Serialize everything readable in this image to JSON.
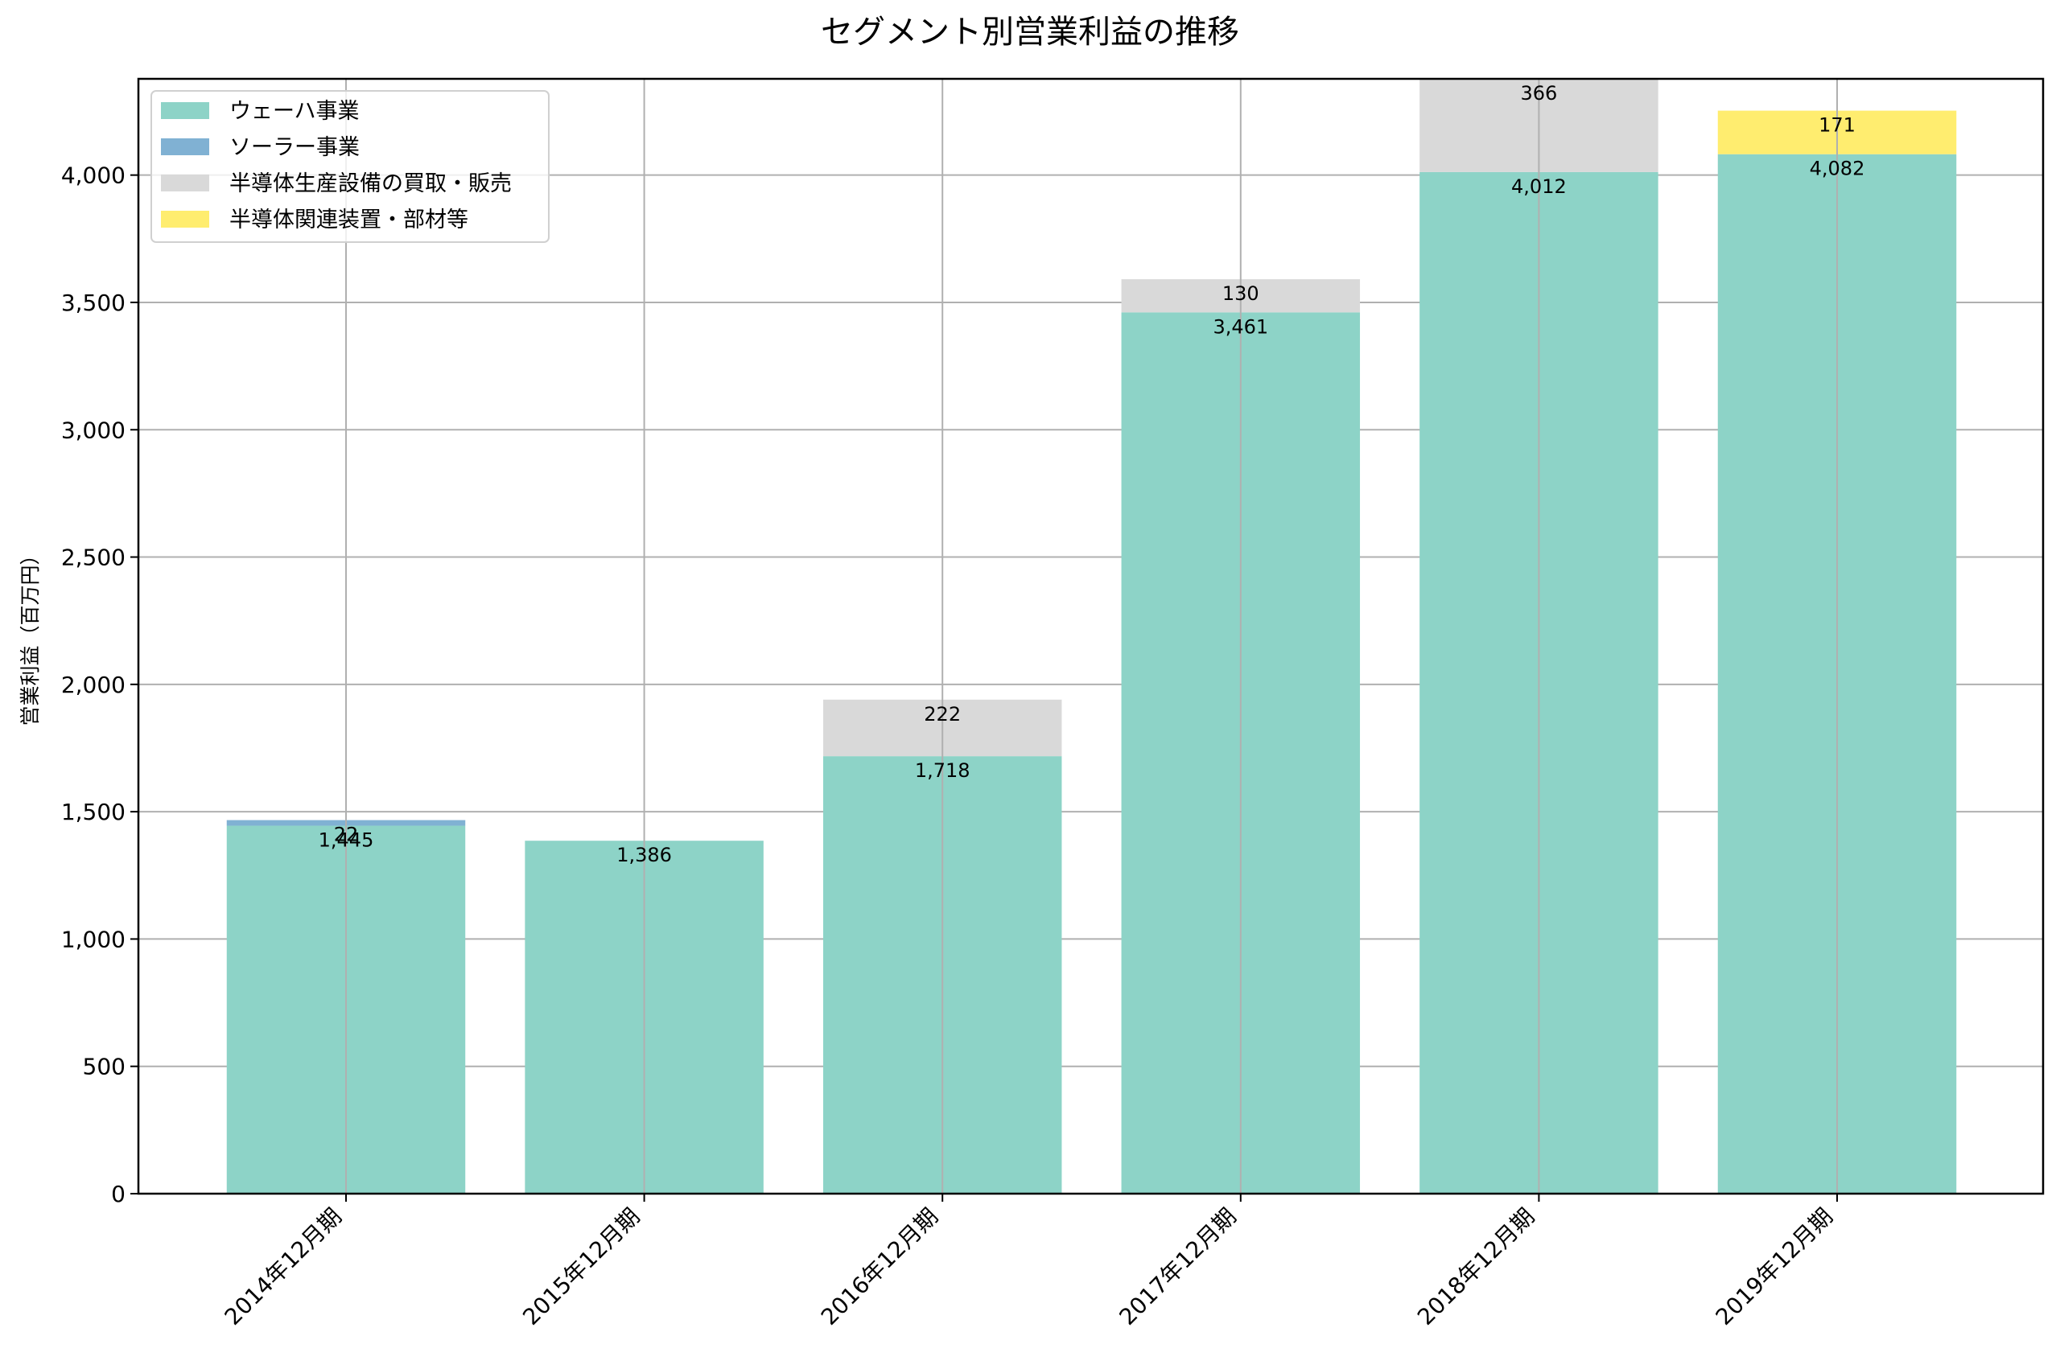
{
  "chart_data": {
    "type": "bar",
    "stacked": true,
    "title": "セグメント別営業利益の推移",
    "xlabel": "",
    "ylabel": "営業利益（百万円）",
    "categories": [
      "2014年12月期",
      "2015年12月期",
      "2016年12月期",
      "2017年12月期",
      "2018年12月期",
      "2019年12月期"
    ],
    "series": [
      {
        "name": "ウェーハ事業",
        "color": "#8dd3c7",
        "values": [
          1445,
          1386,
          1718,
          3461,
          4012,
          4082
        ],
        "labels": [
          "1,445",
          "1,386",
          "1,718",
          "3,461",
          "4,012",
          "4,082"
        ]
      },
      {
        "name": "ソーラー事業",
        "color": "#80b1d3",
        "values": [
          22,
          0,
          0,
          0,
          0,
          0
        ],
        "labels": [
          "22",
          "",
          "",
          "",
          "",
          ""
        ]
      },
      {
        "name": "半導体生産設備の買取・販売",
        "color": "#d9d9d9",
        "values": [
          0,
          0,
          222,
          130,
          366,
          0
        ],
        "labels": [
          "",
          "",
          "222",
          "130",
          "366",
          ""
        ]
      },
      {
        "name": "半導体関連装置・部材等",
        "color": "#ffed6f",
        "values": [
          0,
          0,
          0,
          0,
          0,
          171
        ],
        "labels": [
          "",
          "",
          "",
          "",
          "",
          "171"
        ]
      }
    ],
    "ylim": [
      0,
      4378
    ],
    "yticks": [
      0,
      500,
      1000,
      1500,
      2000,
      2500,
      3000,
      3500,
      4000
    ],
    "ytick_labels": [
      "0",
      "500",
      "1,000",
      "1,500",
      "2,000",
      "2,500",
      "3,000",
      "3,500",
      "4,000"
    ],
    "xtick_rotation": 45,
    "grid": true,
    "legend_position": "upper left"
  }
}
